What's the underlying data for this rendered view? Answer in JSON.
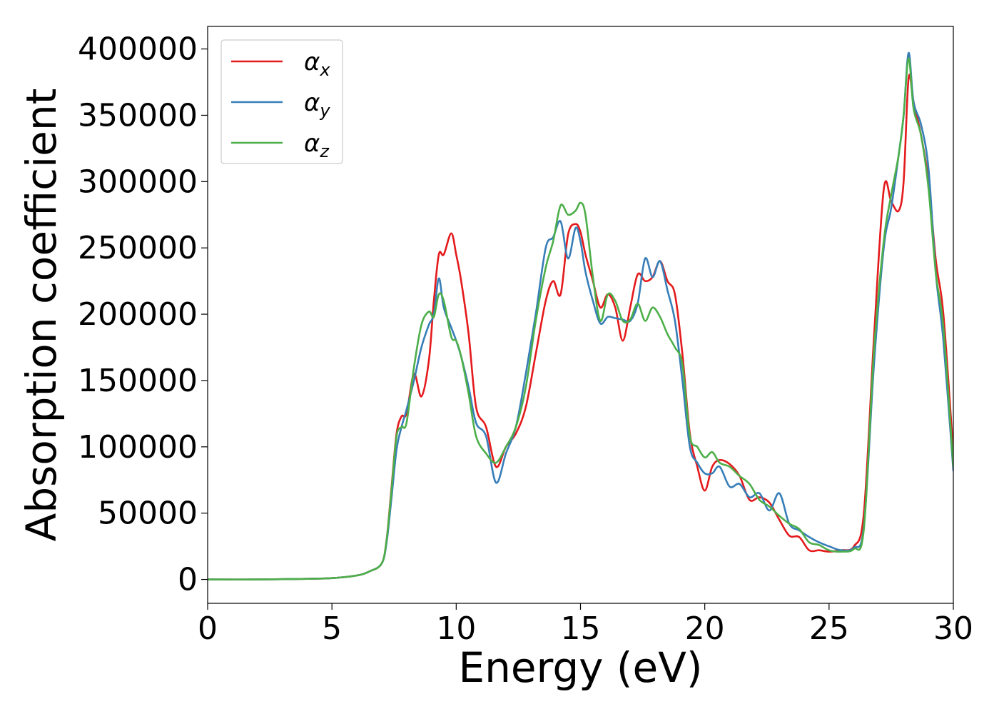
{
  "chart_data": {
    "type": "line",
    "title": "",
    "xlabel": "Energy (eV)",
    "ylabel": "Absorption coefficient",
    "xlim": [
      0,
      30
    ],
    "ylim": [
      -18000,
      417000
    ],
    "xticks": [
      0,
      5,
      10,
      15,
      20,
      25,
      30
    ],
    "xtick_labels": [
      "0",
      "5",
      "10",
      "15",
      "20",
      "25",
      "30"
    ],
    "yticks": [
      0,
      50000,
      100000,
      150000,
      200000,
      250000,
      300000,
      350000,
      400000
    ],
    "ytick_labels": [
      "0",
      "50000",
      "100000",
      "150000",
      "200000",
      "250000",
      "300000",
      "350000",
      "400000"
    ],
    "grid": false,
    "legend_position": "top-left",
    "series": [
      {
        "name": "α_x",
        "name_base": "α",
        "name_sub": "x",
        "color": "#e41a1c",
        "x": [
          0,
          2,
          4,
          5,
          6,
          6.5,
          7,
          7.2,
          7.4,
          7.6,
          7.8,
          8.0,
          8.3,
          8.6,
          8.9,
          9.1,
          9.3,
          9.5,
          9.8,
          10.0,
          10.2,
          10.5,
          10.8,
          11.2,
          11.6,
          12.0,
          12.4,
          12.8,
          13.2,
          13.6,
          13.9,
          14.2,
          14.5,
          14.8,
          15.0,
          15.2,
          15.5,
          15.8,
          16.1,
          16.4,
          16.7,
          17.0,
          17.3,
          17.6,
          17.9,
          18.2,
          18.5,
          18.8,
          19.1,
          19.4,
          19.7,
          20.0,
          20.3,
          20.6,
          21.0,
          21.4,
          21.8,
          22.2,
          22.6,
          23.0,
          23.4,
          23.8,
          24.2,
          24.6,
          25.0,
          25.5,
          26.0,
          26.4,
          26.8,
          27.2,
          27.5,
          27.8,
          28.0,
          28.2,
          28.4,
          28.7,
          29.0,
          29.3,
          29.6,
          30.0
        ],
        "y": [
          0,
          0,
          500,
          1000,
          3000,
          6000,
          12000,
          30000,
          70000,
          110000,
          123000,
          125000,
          155000,
          138000,
          165000,
          210000,
          245000,
          245000,
          261000,
          245000,
          225000,
          185000,
          130000,
          115000,
          85000,
          100000,
          110000,
          130000,
          170000,
          210000,
          225000,
          215000,
          260000,
          268000,
          262000,
          245000,
          225000,
          205000,
          215000,
          205000,
          180000,
          205000,
          230000,
          225000,
          228000,
          240000,
          225000,
          215000,
          170000,
          110000,
          85000,
          67000,
          85000,
          90000,
          87000,
          78000,
          60000,
          62000,
          58000,
          45000,
          33000,
          32000,
          22000,
          22000,
          21000,
          22000,
          25000,
          50000,
          180000,
          294000,
          285000,
          278000,
          300000,
          378000,
          360000,
          335000,
          300000,
          240000,
          200000,
          95000
        ]
      },
      {
        "name": "α_y",
        "name_base": "α",
        "name_sub": "y",
        "color": "#377eb8",
        "x": [
          0,
          2,
          4,
          5,
          6,
          6.5,
          7,
          7.2,
          7.4,
          7.6,
          7.8,
          8.0,
          8.3,
          8.6,
          8.9,
          9.1,
          9.3,
          9.5,
          9.8,
          10.0,
          10.2,
          10.5,
          10.8,
          11.2,
          11.6,
          12.0,
          12.4,
          12.8,
          13.2,
          13.6,
          13.9,
          14.2,
          14.5,
          14.8,
          15.0,
          15.2,
          15.5,
          15.8,
          16.1,
          16.4,
          16.7,
          17.0,
          17.3,
          17.6,
          17.9,
          18.2,
          18.5,
          18.8,
          19.1,
          19.4,
          19.7,
          20.0,
          20.3,
          20.6,
          21.0,
          21.4,
          21.8,
          22.2,
          22.6,
          23.0,
          23.4,
          23.8,
          24.2,
          24.6,
          25.0,
          25.5,
          26.0,
          26.4,
          26.8,
          27.2,
          27.5,
          27.8,
          28.0,
          28.2,
          28.4,
          28.7,
          29.0,
          29.3,
          29.6,
          30.0
        ],
        "y": [
          0,
          0,
          500,
          1000,
          3000,
          6000,
          12000,
          28000,
          62000,
          98000,
          115000,
          128000,
          150000,
          175000,
          192000,
          200000,
          227000,
          205000,
          190000,
          180000,
          168000,
          145000,
          118000,
          108000,
          73000,
          95000,
          115000,
          155000,
          200000,
          250000,
          258000,
          270000,
          242000,
          265000,
          255000,
          232000,
          210000,
          193000,
          198000,
          197000,
          196000,
          195000,
          208000,
          242000,
          228000,
          240000,
          218000,
          195000,
          150000,
          100000,
          88000,
          80000,
          80000,
          85000,
          70000,
          72000,
          62000,
          65000,
          52000,
          65000,
          42000,
          37000,
          32000,
          28000,
          25000,
          22000,
          24000,
          40000,
          160000,
          250000,
          280000,
          320000,
          350000,
          397000,
          360000,
          343000,
          310000,
          230000,
          180000,
          82000
        ]
      },
      {
        "name": "α_z",
        "name_base": "α",
        "name_sub": "z",
        "color": "#4daf4a",
        "x": [
          0,
          2,
          4,
          5,
          6,
          6.5,
          7,
          7.2,
          7.4,
          7.6,
          7.8,
          8.0,
          8.3,
          8.6,
          8.9,
          9.1,
          9.3,
          9.5,
          9.8,
          10.0,
          10.2,
          10.5,
          10.8,
          11.2,
          11.6,
          12.0,
          12.4,
          12.8,
          13.2,
          13.6,
          13.9,
          14.2,
          14.5,
          14.8,
          15.0,
          15.2,
          15.5,
          15.8,
          16.1,
          16.4,
          16.7,
          17.0,
          17.3,
          17.6,
          17.9,
          18.2,
          18.5,
          18.8,
          19.1,
          19.4,
          19.7,
          20.0,
          20.3,
          20.6,
          21.0,
          21.4,
          21.8,
          22.2,
          22.6,
          23.0,
          23.4,
          23.8,
          24.2,
          24.6,
          25.0,
          25.5,
          26.0,
          26.4,
          26.8,
          27.2,
          27.5,
          27.8,
          28.0,
          28.2,
          28.4,
          28.7,
          29.0,
          29.3,
          29.6,
          30.0
        ],
        "y": [
          0,
          0,
          500,
          1000,
          3000,
          6000,
          12000,
          30000,
          68000,
          108000,
          115000,
          118000,
          160000,
          192000,
          202000,
          198000,
          215000,
          210000,
          183000,
          180000,
          168000,
          140000,
          108000,
          95000,
          88000,
          100000,
          115000,
          145000,
          195000,
          235000,
          255000,
          282000,
          275000,
          278000,
          284000,
          275000,
          228000,
          195000,
          215000,
          210000,
          195000,
          196000,
          208000,
          195000,
          205000,
          198000,
          185000,
          175000,
          162000,
          108000,
          100000,
          92000,
          96000,
          88000,
          85000,
          78000,
          72000,
          60000,
          55000,
          48000,
          42000,
          38000,
          28000,
          26000,
          22000,
          21000,
          23000,
          38000,
          170000,
          255000,
          290000,
          320000,
          350000,
          393000,
          355000,
          335000,
          295000,
          230000,
          190000,
          85000
        ]
      }
    ]
  }
}
